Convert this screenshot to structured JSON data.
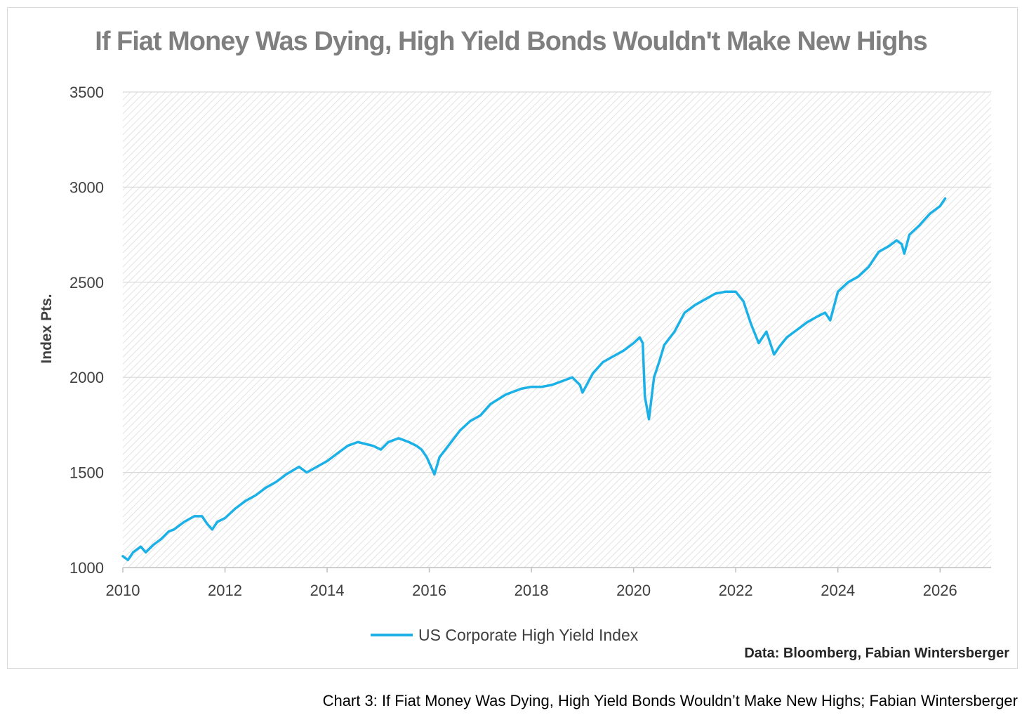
{
  "chart_data": {
    "type": "line",
    "title": "If Fiat Money Was Dying, High Yield Bonds Wouldn't Make New Highs",
    "ylabel": "Index Pts.",
    "xlabel": "",
    "xlim": [
      2010,
      2027
    ],
    "ylim": [
      1000,
      3500
    ],
    "x_ticks": [
      "2010",
      "2012",
      "2014",
      "2016",
      "2018",
      "2020",
      "2022",
      "2024",
      "2026"
    ],
    "y_ticks": [
      "3500",
      "3000",
      "2500",
      "2000",
      "1500",
      "1000"
    ],
    "grid": true,
    "legend_position": "bottom-center",
    "colors": {
      "series": "#1bb0e6",
      "grid": "#d9d9d9",
      "hatch": "#d4d4d4"
    },
    "series": [
      {
        "name": "US Corporate High Yield Index",
        "x": [
          2010.0,
          2010.1,
          2010.2,
          2010.35,
          2010.45,
          2010.6,
          2010.75,
          2010.9,
          2011.0,
          2011.2,
          2011.4,
          2011.55,
          2011.65,
          2011.75,
          2011.85,
          2012.0,
          2012.2,
          2012.4,
          2012.6,
          2012.8,
          2013.0,
          2013.2,
          2013.45,
          2013.6,
          2013.8,
          2014.0,
          2014.2,
          2014.4,
          2014.5,
          2014.6,
          2014.75,
          2014.9,
          2015.05,
          2015.2,
          2015.4,
          2015.6,
          2015.75,
          2015.85,
          2015.95,
          2016.1,
          2016.2,
          2016.4,
          2016.6,
          2016.8,
          2017.0,
          2017.2,
          2017.5,
          2017.8,
          2018.0,
          2018.2,
          2018.4,
          2018.6,
          2018.8,
          2018.95,
          2019.0,
          2019.2,
          2019.4,
          2019.6,
          2019.8,
          2020.0,
          2020.12,
          2020.18,
          2020.22,
          2020.3,
          2020.4,
          2020.5,
          2020.6,
          2020.8,
          2021.0,
          2021.2,
          2021.4,
          2021.6,
          2021.8,
          2022.0,
          2022.15,
          2022.3,
          2022.45,
          2022.6,
          2022.75,
          2022.85,
          2023.0,
          2023.2,
          2023.4,
          2023.6,
          2023.75,
          2023.85,
          2024.0,
          2024.2,
          2024.4,
          2024.6,
          2024.8,
          2025.0,
          2025.15,
          2025.25,
          2025.3,
          2025.4,
          2025.6,
          2025.8,
          2026.0,
          2026.1
        ],
        "values": [
          1060,
          1040,
          1080,
          1110,
          1080,
          1120,
          1150,
          1190,
          1200,
          1240,
          1270,
          1270,
          1230,
          1200,
          1240,
          1260,
          1310,
          1350,
          1380,
          1420,
          1450,
          1490,
          1530,
          1500,
          1530,
          1560,
          1600,
          1640,
          1650,
          1660,
          1650,
          1640,
          1620,
          1660,
          1680,
          1660,
          1640,
          1620,
          1580,
          1490,
          1580,
          1650,
          1720,
          1770,
          1800,
          1860,
          1910,
          1940,
          1950,
          1950,
          1960,
          1980,
          2000,
          1960,
          1920,
          2020,
          2080,
          2110,
          2140,
          2180,
          2210,
          2180,
          1900,
          1780,
          2000,
          2080,
          2170,
          2240,
          2340,
          2380,
          2410,
          2440,
          2450,
          2450,
          2400,
          2280,
          2180,
          2240,
          2120,
          2160,
          2210,
          2250,
          2290,
          2320,
          2340,
          2300,
          2450,
          2500,
          2530,
          2580,
          2660,
          2690,
          2720,
          2700,
          2650,
          2750,
          2800,
          2860,
          2900,
          2940
        ]
      }
    ]
  },
  "source_note": "Data: Bloomberg, Fabian Wintersberger",
  "caption": "Chart 3: If Fiat Money Was Dying, High Yield Bonds Wouldn’t Make New Highs; Fabian Wintersberger"
}
